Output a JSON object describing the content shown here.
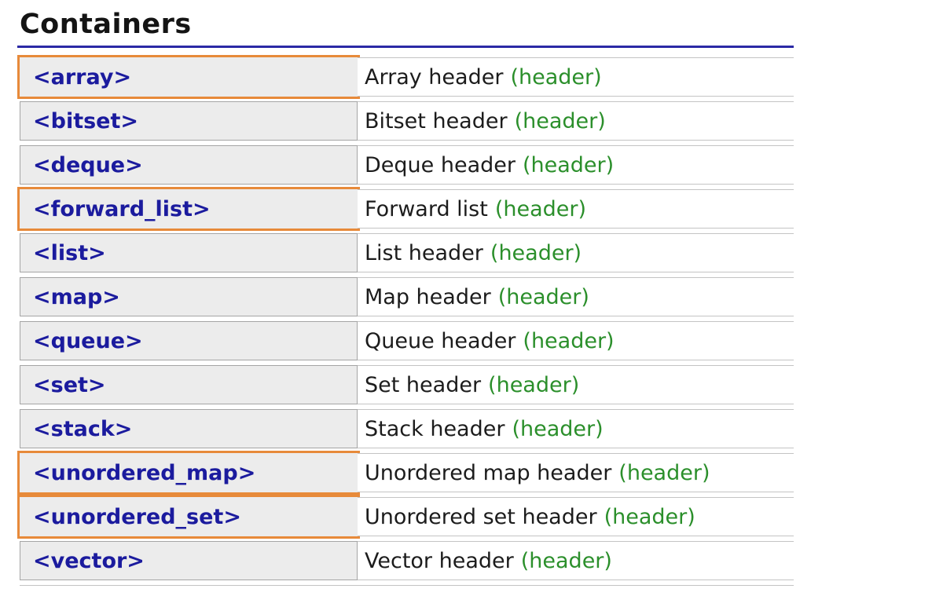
{
  "page": {
    "title": "Containers"
  },
  "colors": {
    "title_underline": "#2b29a5",
    "highlight_border": "#e78a3a",
    "link_navy": "#1b1b9e",
    "mark_green": "#2b8f2b",
    "cell_bg": "#ececec",
    "cell_border": "#a5a5a5",
    "row_line": "#c4c4c4",
    "text_dark": "#1c1c1c"
  },
  "table": {
    "rows": [
      {
        "header": "<array>",
        "description": "Array header",
        "mark": "(header)",
        "highlighted": true
      },
      {
        "header": "<bitset>",
        "description": "Bitset header",
        "mark": "(header)",
        "highlighted": false
      },
      {
        "header": "<deque>",
        "description": "Deque header",
        "mark": "(header)",
        "highlighted": false
      },
      {
        "header": "<forward_list>",
        "description": "Forward list",
        "mark": "(header)",
        "highlighted": true
      },
      {
        "header": "<list>",
        "description": "List header",
        "mark": "(header)",
        "highlighted": false
      },
      {
        "header": "<map>",
        "description": "Map header",
        "mark": "(header)",
        "highlighted": false
      },
      {
        "header": "<queue>",
        "description": "Queue header",
        "mark": "(header)",
        "highlighted": false
      },
      {
        "header": "<set>",
        "description": "Set header",
        "mark": "(header)",
        "highlighted": false
      },
      {
        "header": "<stack>",
        "description": "Stack header",
        "mark": "(header)",
        "highlighted": false
      },
      {
        "header": "<unordered_map>",
        "description": "Unordered map header",
        "mark": "(header)",
        "highlighted": true
      },
      {
        "header": "<unordered_set>",
        "description": "Unordered set header",
        "mark": "(header)",
        "highlighted": true
      },
      {
        "header": "<vector>",
        "description": "Vector header",
        "mark": "(header)",
        "highlighted": false
      }
    ]
  }
}
